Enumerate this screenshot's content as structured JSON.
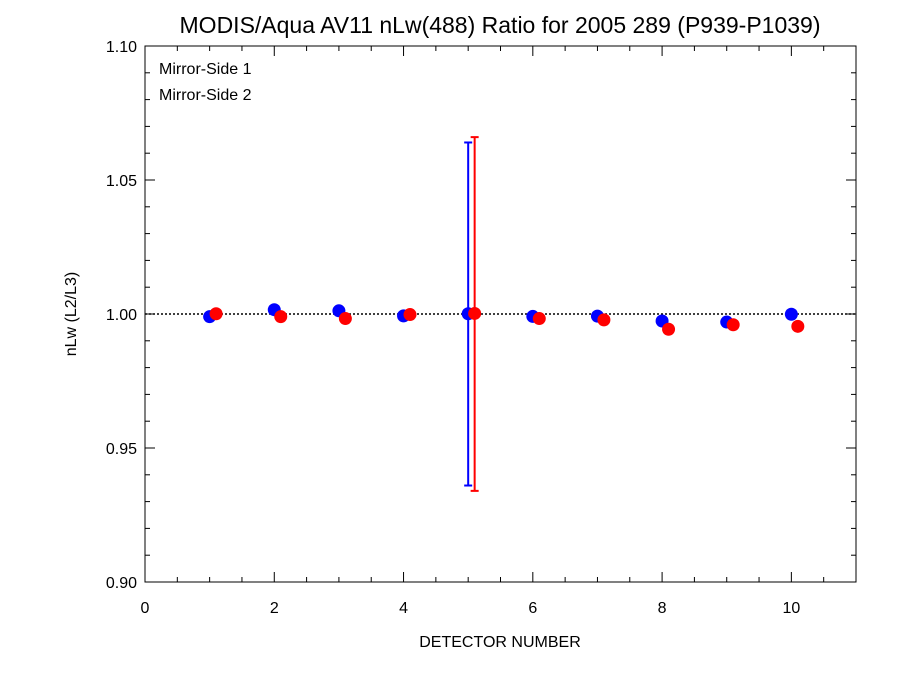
{
  "chart_data": {
    "type": "scatter",
    "title": "MODIS/Aqua AV11 nLw(488) Ratio for 2005 289 (P939-P1039)",
    "xlabel": "DETECTOR NUMBER",
    "ylabel": "nLw (L2/L3)",
    "xlim": [
      0,
      11
    ],
    "ylim": [
      0.9,
      1.1
    ],
    "x_ticks": [
      "0",
      "2",
      "4",
      "6",
      "8",
      "10"
    ],
    "y_ticks": [
      "0.90",
      "0.95",
      "1.00",
      "1.05",
      "1.10"
    ],
    "reference_line": 1.0,
    "legend_position": "top-left",
    "series": [
      {
        "name": "Mirror-Side 1",
        "color": "#0000ff",
        "x": [
          1,
          2,
          3,
          4,
          5,
          6,
          7,
          8,
          9,
          10
        ],
        "y": [
          0.999,
          1.0016,
          1.0012,
          0.9993,
          1.0001,
          0.9991,
          0.9992,
          0.9974,
          0.997,
          0.9999
        ],
        "error_bars": [
          {
            "x": 5,
            "low": 0.936,
            "high": 1.064
          }
        ]
      },
      {
        "name": "Mirror-Side 2",
        "color": "#ff0000",
        "x": [
          1.1,
          2.1,
          3.1,
          4.1,
          5.1,
          6.1,
          7.1,
          8.1,
          9.1,
          10.1
        ],
        "y": [
          1.0001,
          0.999,
          0.9983,
          0.9998,
          1.0002,
          0.9983,
          0.9978,
          0.9943,
          0.996,
          0.9954
        ],
        "error_bars": [
          {
            "x": 5.1,
            "low": 0.934,
            "high": 1.066
          }
        ]
      }
    ]
  }
}
